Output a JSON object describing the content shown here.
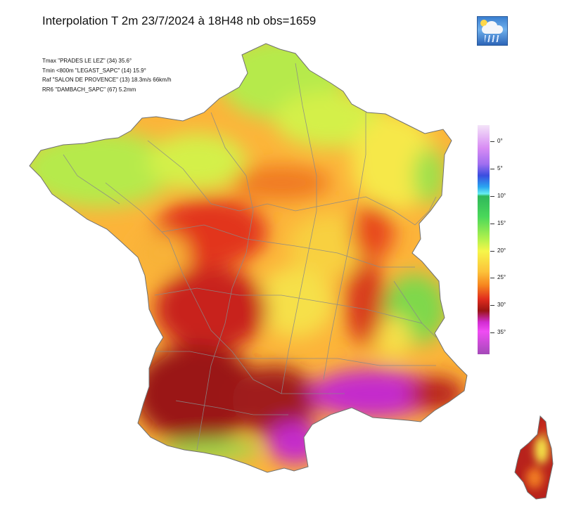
{
  "title": "Interpolation T 2m  23/7/2024 à 18H48 nb obs=1659",
  "stats": [
    "Tmax \"PRADES LE LEZ\" (34) 35.6°",
    "Tmin <800m \"LEGAST_SAPC\" (14)  15.9°",
    "Raf  \"SALON DE PROVENCE\" (13)  18.3m/s 66km/h",
    "RR6 \"DAMBACH_SAPC\" (67)  5.2mm"
  ],
  "legend": {
    "unit": "°C",
    "labels": [
      "0°",
      "5°",
      "10°",
      "15°",
      "20°",
      "25°",
      "30°",
      "35°"
    ],
    "values": [
      0,
      5,
      10,
      15,
      20,
      25,
      30,
      35
    ],
    "range": [
      -3,
      39
    ]
  },
  "colors": {
    "cool": "#b6ea4c",
    "mild": "#f4e84a",
    "warm": "#fcb43a",
    "hot": "#e8401e",
    "very_hot": "#a51c1c",
    "extreme": "#c22ccc",
    "borders": "#8a8a8a"
  },
  "icons": [
    "logo-icon"
  ]
}
